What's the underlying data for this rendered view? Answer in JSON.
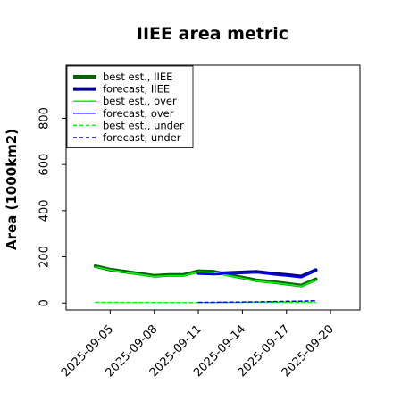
{
  "chart_data": {
    "type": "line",
    "title": "IIEE area metric",
    "xlabel": "",
    "ylabel": "Area (1000km2)",
    "ylim": [
      -30,
      1030
    ],
    "yticks": [
      0,
      200,
      400,
      600,
      800
    ],
    "xlim": [
      "2025-09-02",
      "2025-09-22"
    ],
    "xticks": [
      "2025-09-05",
      "2025-09-08",
      "2025-09-11",
      "2025-09-14",
      "2025-09-17",
      "2025-09-20"
    ],
    "highlighted_xtick": "2025-09-11",
    "highlight_color": "#228b22",
    "grid": false,
    "legend_position": "upper-left",
    "series": [
      {
        "name": "best est., IIEE",
        "color": "#006400",
        "style": "solid",
        "width": 4,
        "x": [
          "2025-09-04",
          "2025-09-05",
          "2025-09-08",
          "2025-09-09",
          "2025-09-10",
          "2025-09-11",
          "2025-09-12",
          "2025-09-15",
          "2025-09-16",
          "2025-09-17",
          "2025-09-18",
          "2025-09-19"
        ],
        "y": [
          160,
          145,
          118,
          122,
          122,
          138,
          136,
          98,
          92,
          84,
          76,
          103
        ]
      },
      {
        "name": "forecast, IIEE",
        "color": "#00008b",
        "style": "solid",
        "width": 4,
        "x": [
          "2025-09-11",
          "2025-09-12",
          "2025-09-15",
          "2025-09-16",
          "2025-09-17",
          "2025-09-18",
          "2025-09-19"
        ],
        "y": [
          130,
          128,
          135,
          128,
          122,
          115,
          143
        ]
      },
      {
        "name": "best est., over",
        "color": "#00ff00",
        "style": "solid",
        "width": 1.5,
        "x": [
          "2025-09-04",
          "2025-09-05",
          "2025-09-08",
          "2025-09-09",
          "2025-09-10",
          "2025-09-11",
          "2025-09-12",
          "2025-09-15",
          "2025-09-16",
          "2025-09-17",
          "2025-09-18",
          "2025-09-19"
        ],
        "y": [
          157,
          143,
          115,
          119,
          119,
          135,
          133,
          95,
          89,
          81,
          73,
          100
        ]
      },
      {
        "name": "forecast, over",
        "color": "#0000ff",
        "style": "solid",
        "width": 1.5,
        "x": [
          "2025-09-11",
          "2025-09-12",
          "2025-09-15",
          "2025-09-16",
          "2025-09-17",
          "2025-09-18",
          "2025-09-19"
        ],
        "y": [
          127,
          125,
          132,
          125,
          119,
          112,
          140
        ]
      },
      {
        "name": "best est., under",
        "color": "#00ff00",
        "style": "dashed",
        "width": 1.5,
        "x": [
          "2025-09-04",
          "2025-09-05",
          "2025-09-08",
          "2025-09-09",
          "2025-09-10",
          "2025-09-11",
          "2025-09-12",
          "2025-09-15",
          "2025-09-16",
          "2025-09-17",
          "2025-09-18",
          "2025-09-19"
        ],
        "y": [
          3,
          3,
          2,
          2,
          2,
          2,
          2,
          3,
          3,
          3,
          3,
          3
        ]
      },
      {
        "name": "forecast, under",
        "color": "#0000ff",
        "style": "dashed",
        "width": 1.5,
        "x": [
          "2025-09-11",
          "2025-09-12",
          "2025-09-15",
          "2025-09-16",
          "2025-09-17",
          "2025-09-18",
          "2025-09-19"
        ],
        "y": [
          3,
          3,
          5,
          6,
          7,
          8,
          10
        ]
      }
    ]
  }
}
